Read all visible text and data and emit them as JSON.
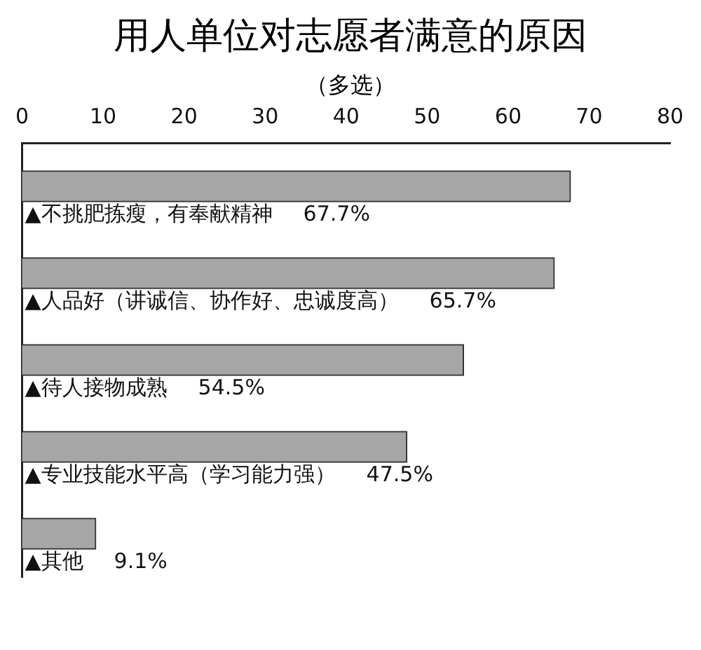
{
  "chart_data": {
    "type": "bar",
    "orientation": "horizontal",
    "title": "用人单位对志愿者满意的原因",
    "subtitle": "（多选）",
    "categories": [
      "▲不挑肥拣瘦，有奉献精神",
      "▲人品好（讲诚信、协作好、忠诚度高）",
      "▲待人接物成熟",
      "▲专业技能水平高（学习能力强）",
      "▲其他"
    ],
    "values": [
      67.7,
      65.7,
      54.5,
      47.5,
      9.1
    ],
    "value_labels": [
      "67.7%",
      "65.7%",
      "54.5%",
      "47.5%",
      "9.1%"
    ],
    "color": "#a6a6a6",
    "xlim": [
      0,
      80
    ],
    "xticks": [
      0,
      10,
      20,
      30,
      40,
      50,
      60,
      70,
      80
    ],
    "grid": false,
    "legend": false
  }
}
